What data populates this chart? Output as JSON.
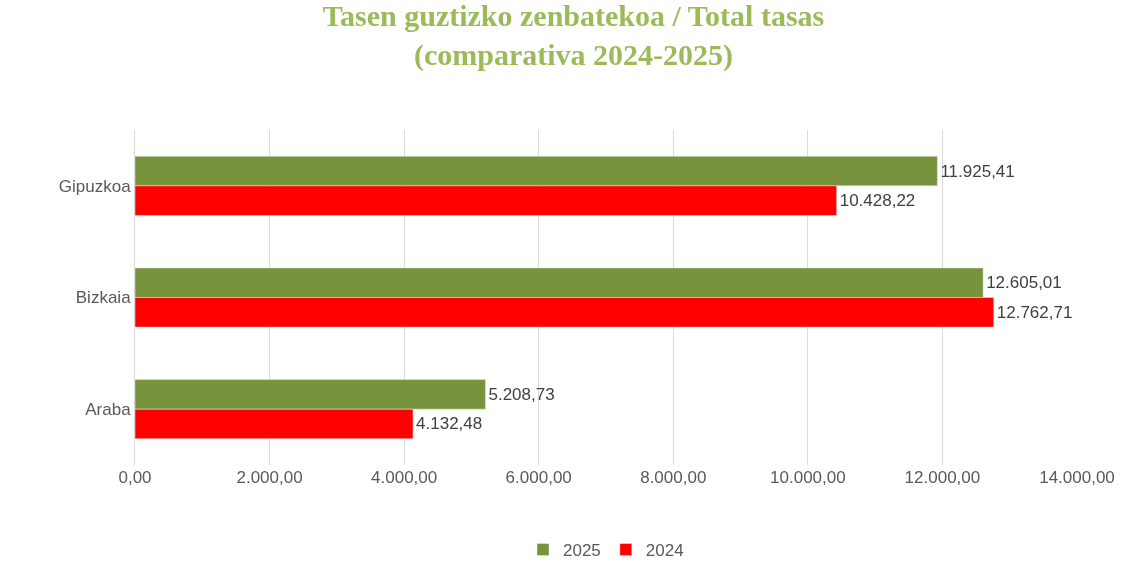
{
  "chart_data": {
    "type": "bar",
    "orientation": "horizontal",
    "title": "Tasen guztizko zenbatekoa / Total tasas\n(comparativa 2024-2025)",
    "categories": [
      "Gipuzkoa",
      "Bizkaia",
      "Araba"
    ],
    "series": [
      {
        "name": "2025",
        "color": "#77933c",
        "values": [
          11925.41,
          12605.01,
          5208.73
        ],
        "value_labels": [
          "11.925,41",
          "12.605,01",
          "5.208,73"
        ]
      },
      {
        "name": "2024",
        "color": "#ff0000",
        "values": [
          10428.22,
          12762.71,
          4132.48
        ],
        "value_labels": [
          "10.428,22",
          "12.762,71",
          "4.132,48"
        ]
      }
    ],
    "xlim": [
      0,
      14000
    ],
    "xticks": [
      {
        "value": 0,
        "label": "0,00"
      },
      {
        "value": 2000,
        "label": "2.000,00"
      },
      {
        "value": 4000,
        "label": "4.000,00"
      },
      {
        "value": 6000,
        "label": "6.000,00"
      },
      {
        "value": 8000,
        "label": "8.000,00"
      },
      {
        "value": 10000,
        "label": "10.000,00"
      },
      {
        "value": 12000,
        "label": "12.000,00"
      },
      {
        "value": 14000,
        "label": "14.000,00"
      }
    ],
    "grid": "x",
    "legend": "bottom"
  }
}
